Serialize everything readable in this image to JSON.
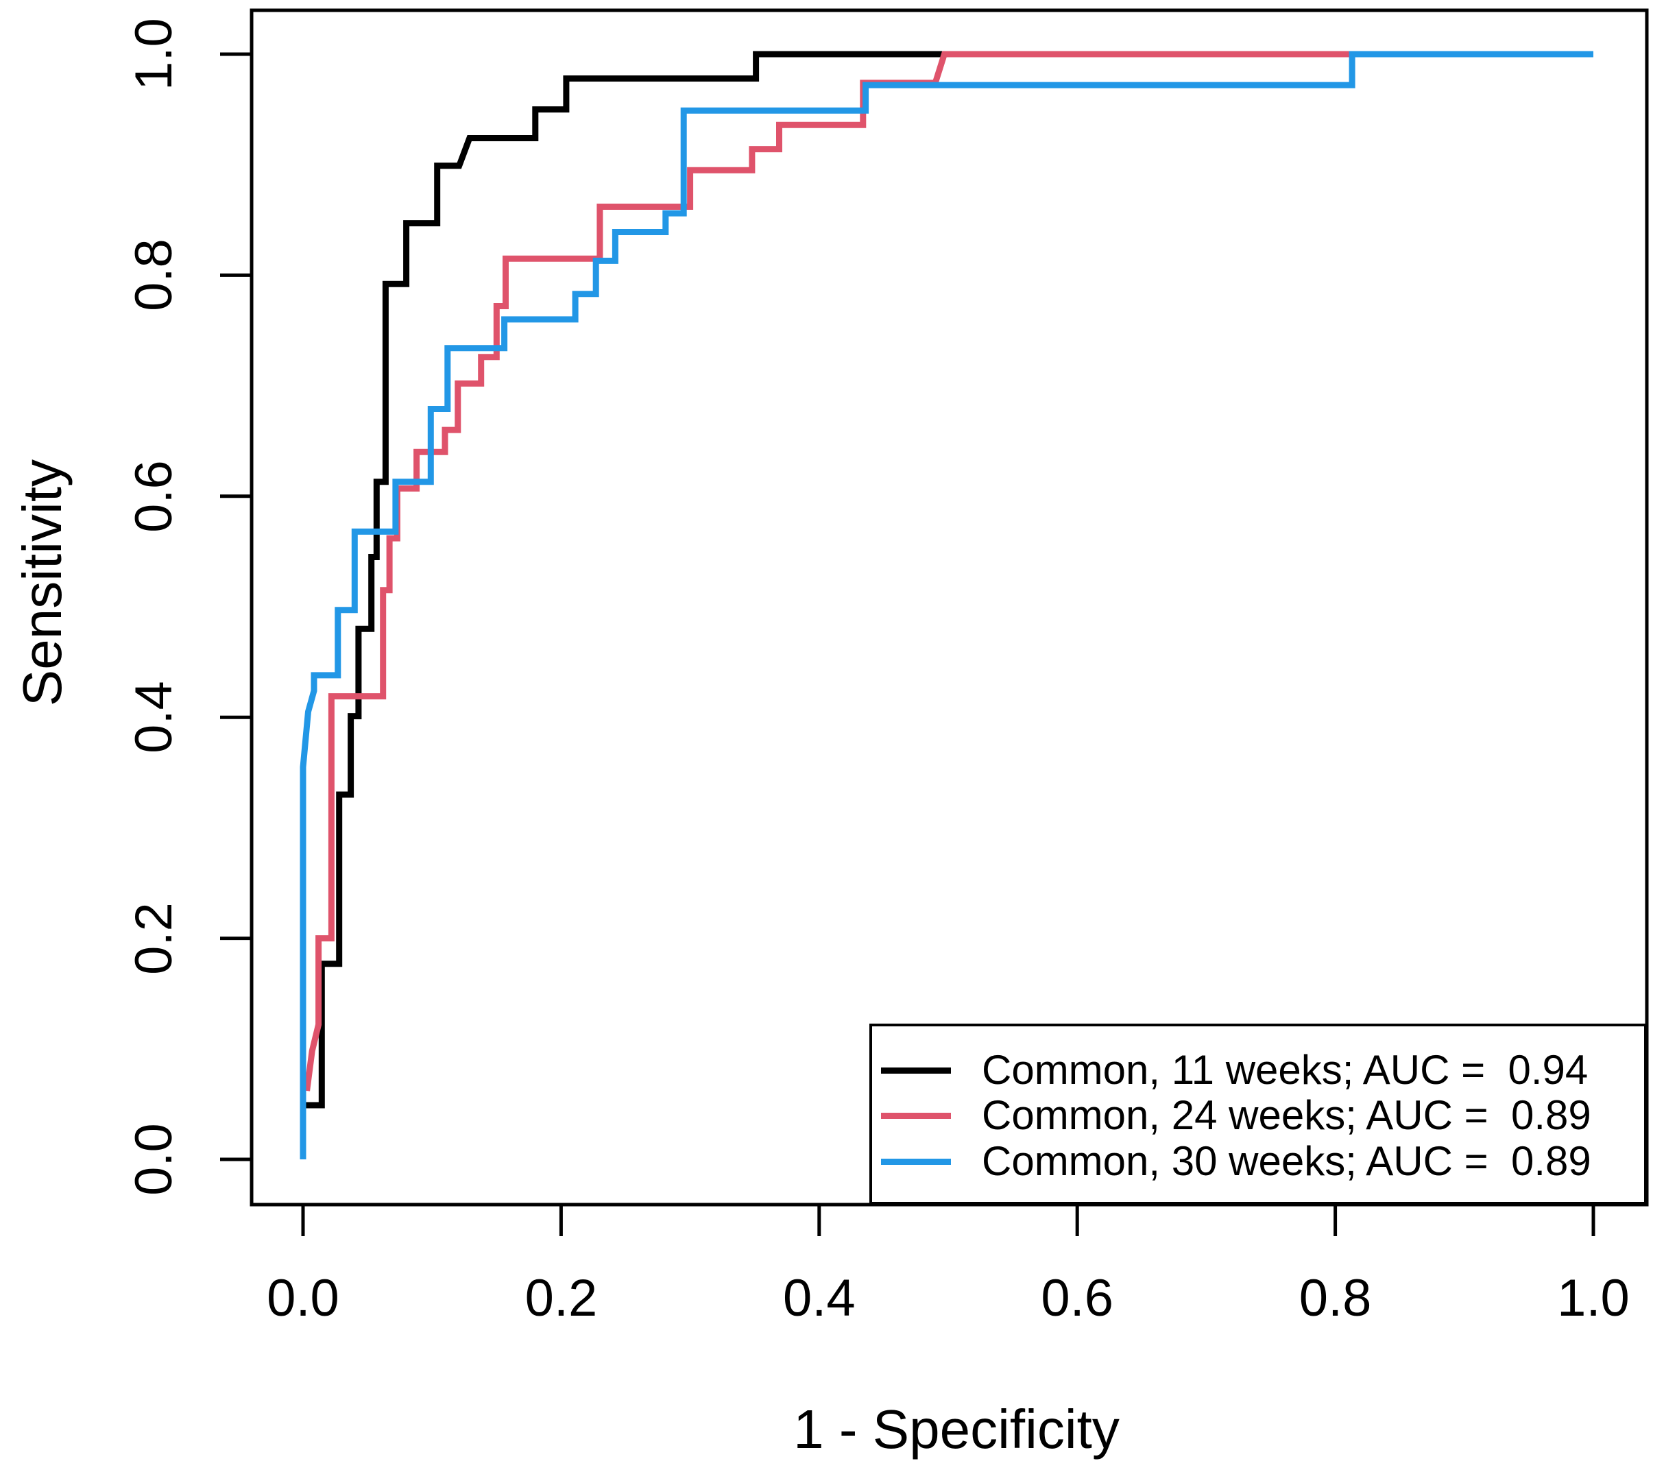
{
  "figure": {
    "x_axis_title": "1 - Specificity",
    "y_axis_title": "Sensitivity"
  },
  "chart_data": {
    "type": "line",
    "subtype": "roc-step-curves",
    "title": "",
    "xlabel": "1 - Specificity",
    "ylabel": "Sensitivity",
    "xlim": [
      0.0,
      1.0
    ],
    "ylim": [
      0.0,
      1.0
    ],
    "x_ticks": [
      0.0,
      0.2,
      0.4,
      0.6,
      0.8,
      1.0
    ],
    "y_ticks": [
      0.0,
      0.2,
      0.4,
      0.6,
      0.8,
      1.0
    ],
    "x_tick_labels": [
      "0.0",
      "0.2",
      "0.4",
      "0.6",
      "0.8",
      "1.0"
    ],
    "y_tick_labels": [
      "0.0",
      "0.2",
      "0.4",
      "0.6",
      "0.8",
      "1.0"
    ],
    "grid": false,
    "legend_position": "bottom-right",
    "frame_color": "#000000",
    "series": [
      {
        "name": "Common, 11 weeks",
        "auc": 0.94,
        "color": "#000000",
        "legend_label": "Common, 11 weeks; AUC =  0.94",
        "points": [
          [
            0.002,
            0.049
          ],
          [
            0.0145,
            0.049
          ],
          [
            0.0145,
            0.177
          ],
          [
            0.028,
            0.177
          ],
          [
            0.028,
            0.33
          ],
          [
            0.037,
            0.33
          ],
          [
            0.037,
            0.401
          ],
          [
            0.043,
            0.401
          ],
          [
            0.043,
            0.48
          ],
          [
            0.053,
            0.48
          ],
          [
            0.053,
            0.545
          ],
          [
            0.057,
            0.545
          ],
          [
            0.057,
            0.613
          ],
          [
            0.064,
            0.613
          ],
          [
            0.064,
            0.792
          ],
          [
            0.08,
            0.792
          ],
          [
            0.08,
            0.847
          ],
          [
            0.104,
            0.847
          ],
          [
            0.104,
            0.899
          ],
          [
            0.121,
            0.899
          ],
          [
            0.129,
            0.924
          ],
          [
            0.18,
            0.924
          ],
          [
            0.18,
            0.95
          ],
          [
            0.204,
            0.95
          ],
          [
            0.204,
            0.978
          ],
          [
            0.351,
            0.978
          ],
          [
            0.351,
            1.0
          ],
          [
            1.0,
            1.0
          ]
        ]
      },
      {
        "name": "Common, 24 weeks",
        "auc": 0.89,
        "color": "#DF536B",
        "legend_label": "Common, 24 weeks; AUC =  0.89",
        "points": [
          [
            0.003,
            0.062
          ],
          [
            0.007,
            0.098
          ],
          [
            0.012,
            0.122
          ],
          [
            0.012,
            0.2
          ],
          [
            0.022,
            0.2
          ],
          [
            0.022,
            0.419
          ],
          [
            0.062,
            0.419
          ],
          [
            0.062,
            0.515
          ],
          [
            0.067,
            0.515
          ],
          [
            0.067,
            0.562
          ],
          [
            0.073,
            0.562
          ],
          [
            0.073,
            0.607
          ],
          [
            0.088,
            0.607
          ],
          [
            0.088,
            0.64
          ],
          [
            0.11,
            0.64
          ],
          [
            0.11,
            0.66
          ],
          [
            0.12,
            0.66
          ],
          [
            0.12,
            0.702
          ],
          [
            0.138,
            0.702
          ],
          [
            0.138,
            0.726
          ],
          [
            0.15,
            0.726
          ],
          [
            0.15,
            0.772
          ],
          [
            0.157,
            0.772
          ],
          [
            0.157,
            0.815
          ],
          [
            0.23,
            0.815
          ],
          [
            0.23,
            0.862
          ],
          [
            0.3,
            0.862
          ],
          [
            0.3,
            0.895
          ],
          [
            0.348,
            0.895
          ],
          [
            0.348,
            0.914
          ],
          [
            0.369,
            0.914
          ],
          [
            0.369,
            0.936
          ],
          [
            0.434,
            0.936
          ],
          [
            0.434,
            0.974
          ],
          [
            0.49,
            0.974
          ],
          [
            0.497,
            1.0
          ],
          [
            1.0,
            1.0
          ]
        ]
      },
      {
        "name": "Common, 30 weeks",
        "auc": 0.89,
        "color": "#2297E6",
        "legend_label": "Common, 30 weeks; AUC =  0.89",
        "points": [
          [
            0.0,
            0.0
          ],
          [
            0.0,
            0.355
          ],
          [
            0.004,
            0.405
          ],
          [
            0.0085,
            0.424
          ],
          [
            0.0085,
            0.438
          ],
          [
            0.027,
            0.438
          ],
          [
            0.027,
            0.497
          ],
          [
            0.04,
            0.497
          ],
          [
            0.04,
            0.568
          ],
          [
            0.0717,
            0.568
          ],
          [
            0.0717,
            0.613
          ],
          [
            0.099,
            0.613
          ],
          [
            0.099,
            0.679
          ],
          [
            0.112,
            0.679
          ],
          [
            0.112,
            0.734
          ],
          [
            0.156,
            0.734
          ],
          [
            0.156,
            0.76
          ],
          [
            0.211,
            0.76
          ],
          [
            0.211,
            0.783
          ],
          [
            0.227,
            0.783
          ],
          [
            0.227,
            0.813
          ],
          [
            0.242,
            0.813
          ],
          [
            0.242,
            0.839
          ],
          [
            0.281,
            0.839
          ],
          [
            0.281,
            0.856
          ],
          [
            0.295,
            0.856
          ],
          [
            0.295,
            0.949
          ],
          [
            0.436,
            0.949
          ],
          [
            0.436,
            0.972
          ],
          [
            0.813,
            0.972
          ],
          [
            0.813,
            1.0
          ],
          [
            1.0,
            1.0
          ]
        ]
      }
    ]
  }
}
